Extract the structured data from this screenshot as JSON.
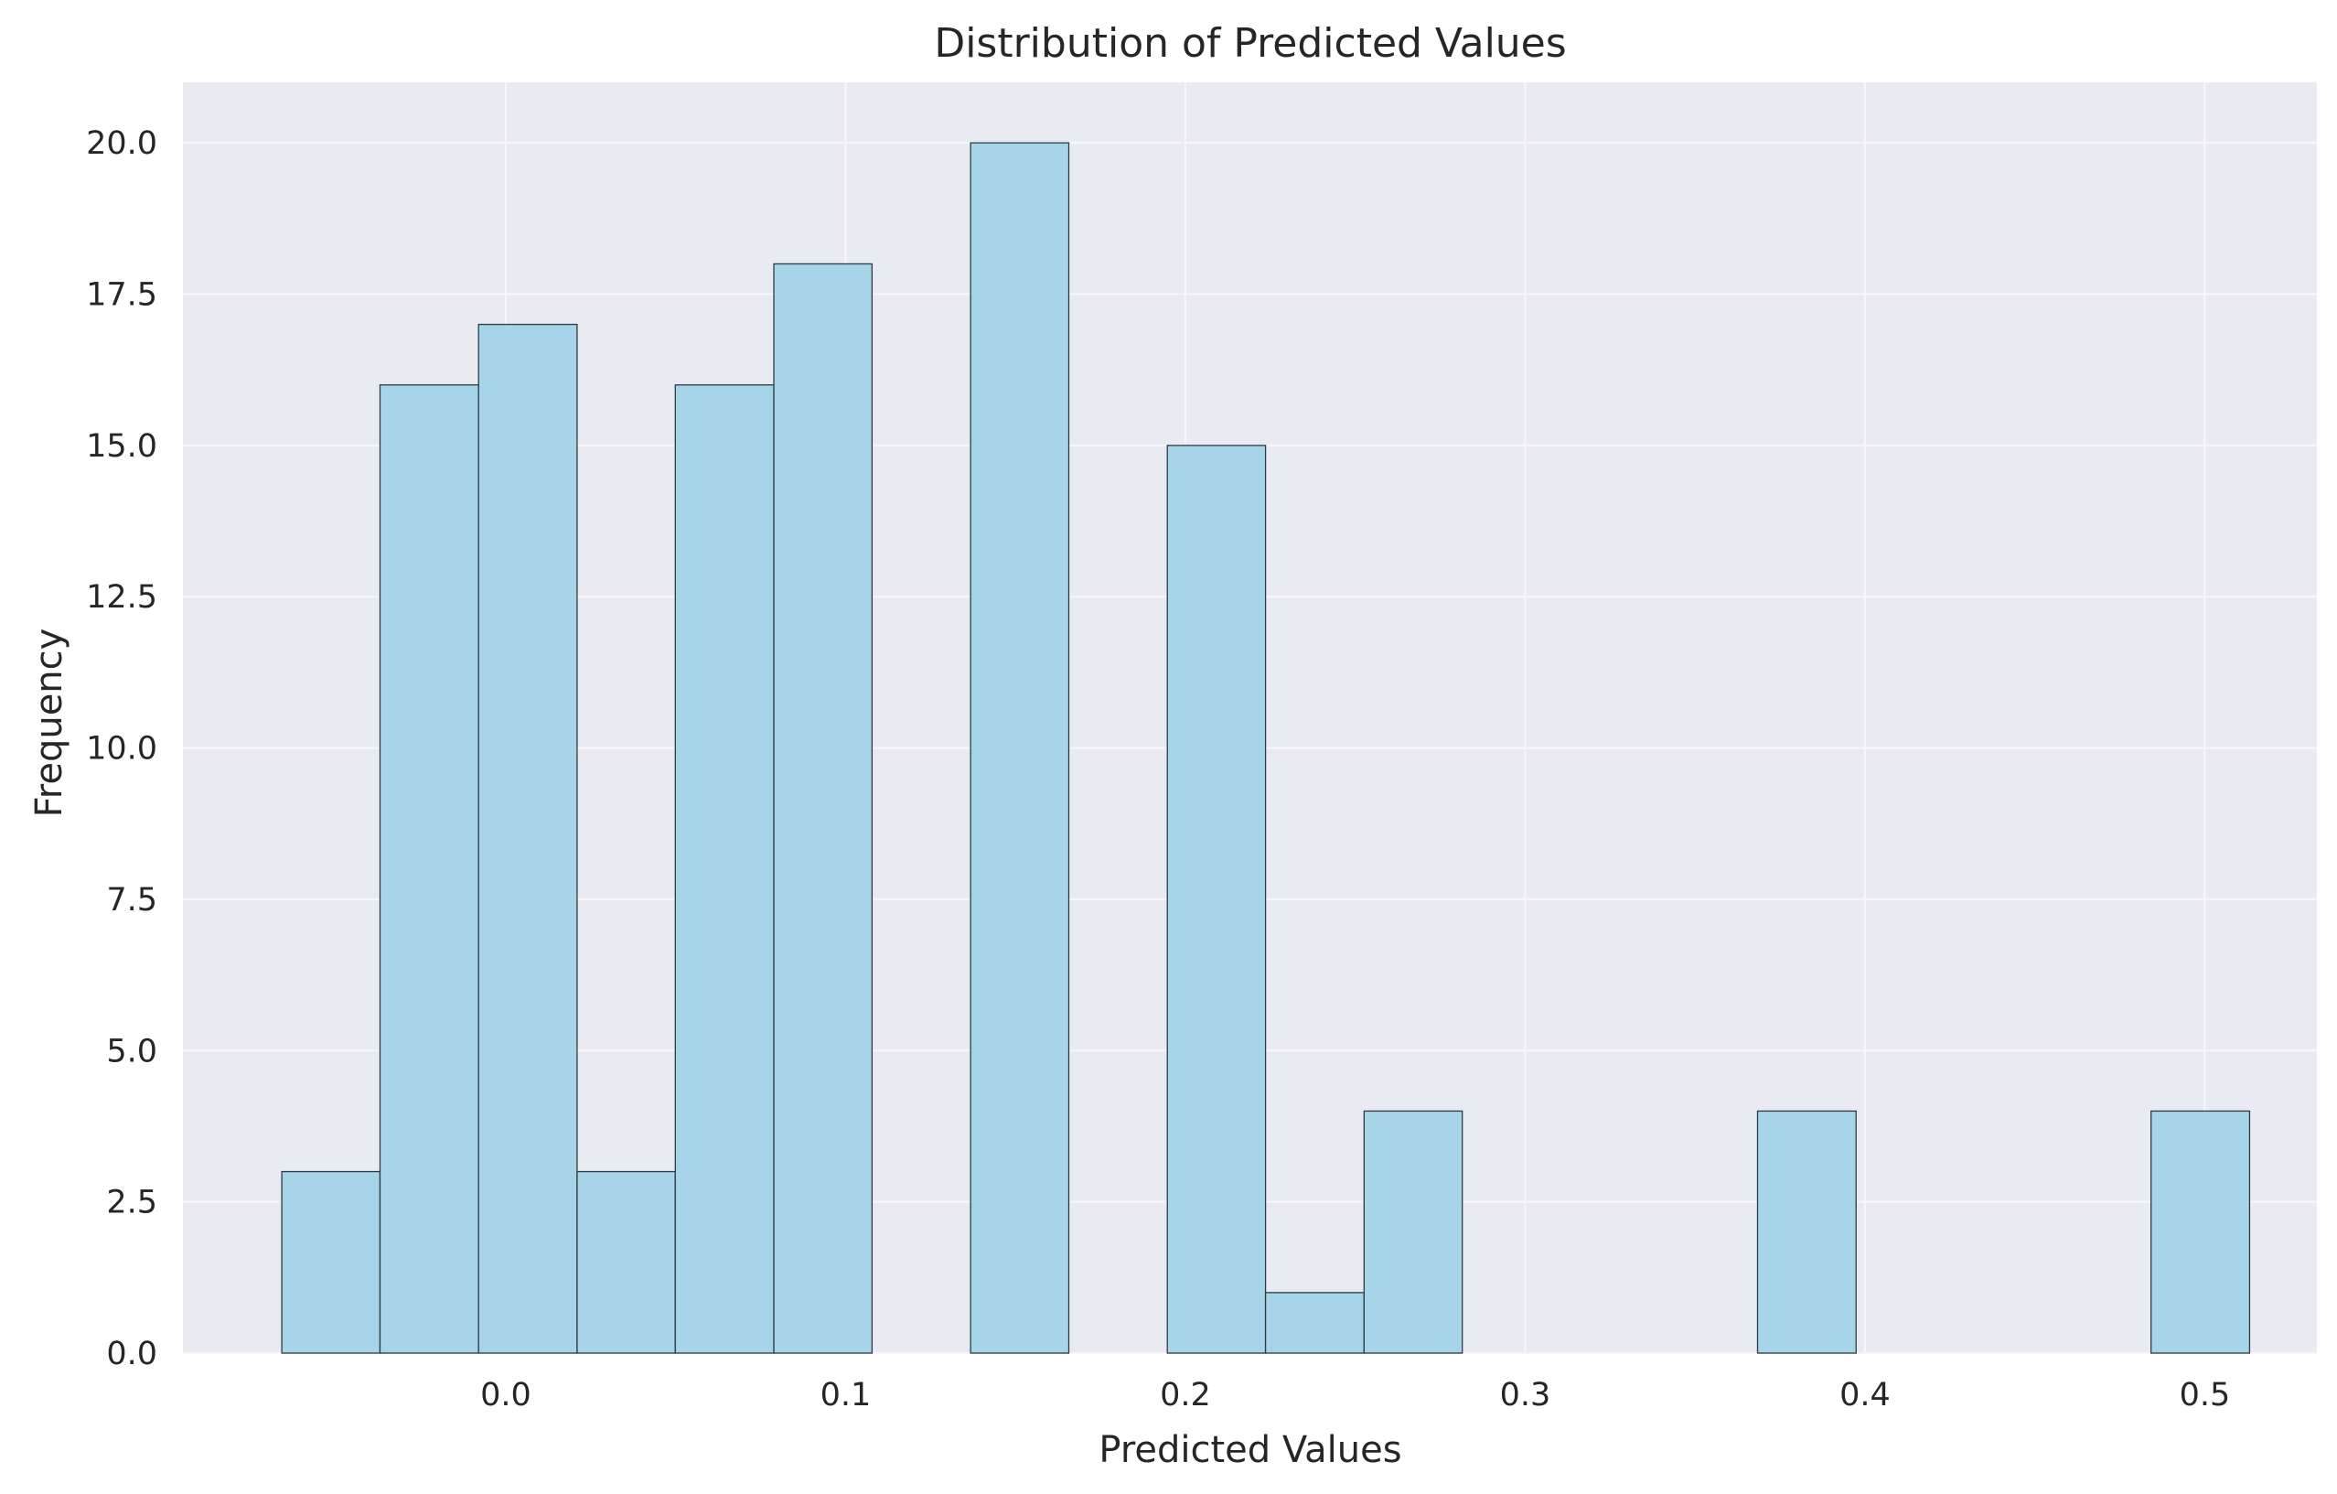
{
  "chart_data": {
    "type": "bar",
    "subtype": "histogram",
    "title": "Distribution of Predicted Values",
    "xlabel": "Predicted Values",
    "ylabel": "Frequency",
    "xlim": [
      -0.095,
      0.533
    ],
    "ylim": [
      0,
      21
    ],
    "grid": true,
    "bin_edges": [
      -0.0659,
      -0.037,
      -0.008,
      0.021,
      0.0499,
      0.0789,
      0.1078,
      0.1368,
      0.1657,
      0.1947,
      0.2236,
      0.2526,
      0.2815,
      0.3105,
      0.3395,
      0.3684,
      0.3974,
      0.4263,
      0.4553,
      0.4842,
      0.5132
    ],
    "values": [
      3,
      16,
      17,
      3,
      16,
      18,
      0,
      20,
      0,
      15,
      1,
      4,
      0,
      0,
      0,
      4,
      0,
      0,
      0,
      4
    ],
    "x_ticks": [
      0.0,
      0.1,
      0.2,
      0.3,
      0.4,
      0.5
    ],
    "x_tick_labels": [
      "0.0",
      "0.1",
      "0.2",
      "0.3",
      "0.4",
      "0.5"
    ],
    "y_ticks": [
      0.0,
      2.5,
      5.0,
      7.5,
      10.0,
      12.5,
      15.0,
      17.5,
      20.0
    ],
    "y_tick_labels": [
      "0.0",
      "2.5",
      "5.0",
      "7.5",
      "10.0",
      "12.5",
      "15.0",
      "17.5",
      "20.0"
    ],
    "colors": {
      "bar_fill": "#a6d5ea",
      "bar_edge": "#2f3b40",
      "plot_background": "#eaeaf2",
      "grid": "#f7f7fa",
      "text": "#262626"
    }
  }
}
